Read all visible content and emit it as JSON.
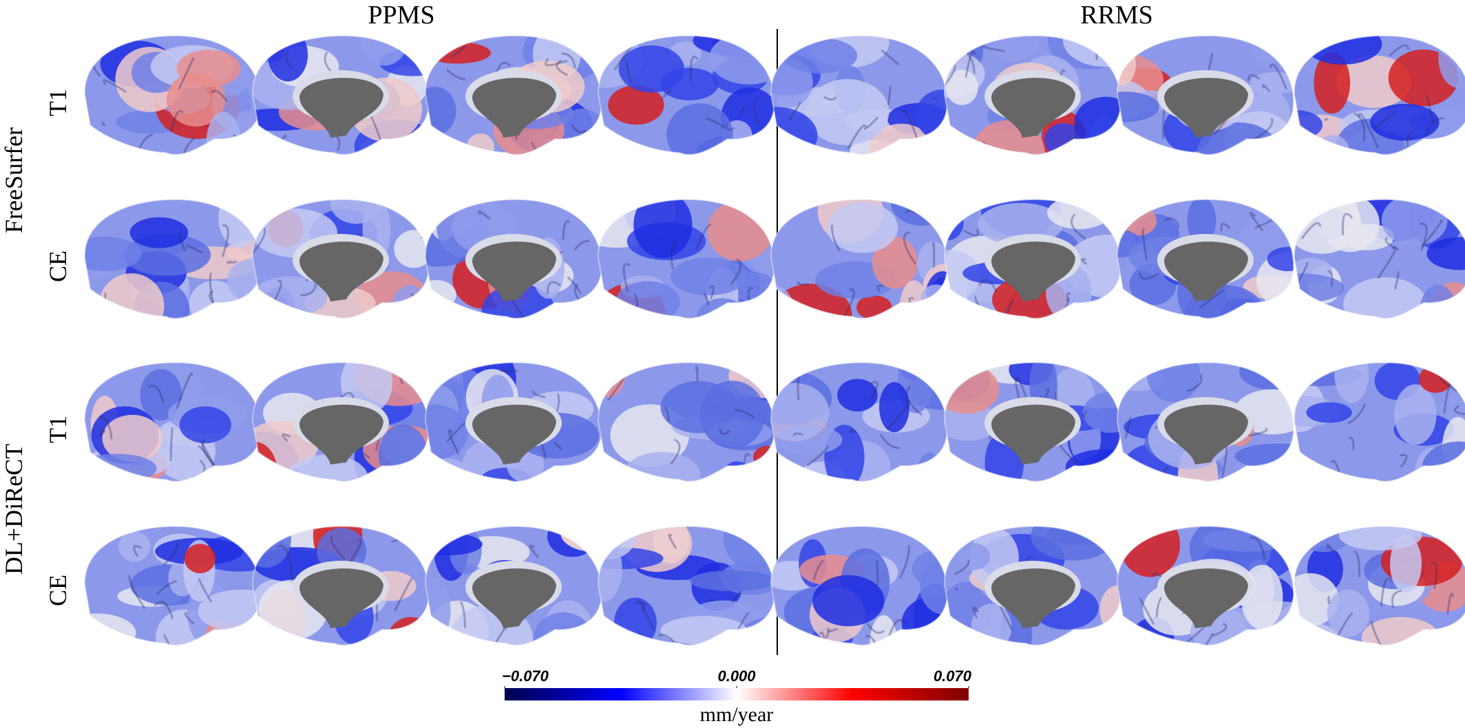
{
  "figure": {
    "columns": [
      "PPMS",
      "RRMS"
    ],
    "groups": [
      {
        "label": "FreeSurfer",
        "rows": [
          "T1",
          "CE"
        ]
      },
      {
        "label": "DL+DiReCT",
        "rows": [
          "T1",
          "CE"
        ]
      }
    ]
  },
  "chart_data": {
    "type": "colorbar",
    "xlim": [
      -0.07,
      0.07
    ],
    "xticks": [
      {
        "value": -0.07,
        "label": "−0.070"
      },
      {
        "value": 0,
        "label": "0.000"
      },
      {
        "value": 0.07,
        "label": "0.070"
      }
    ],
    "x_label": "mm/year",
    "colormap": [
      "#00004c",
      "#0000ff",
      "#ffffff",
      "#ff0000",
      "#7f0000"
    ]
  }
}
